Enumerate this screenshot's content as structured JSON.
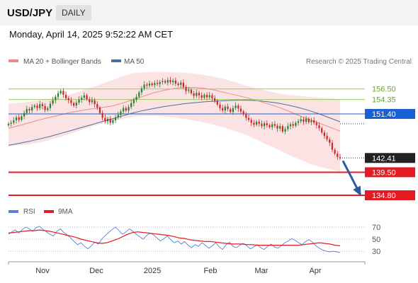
{
  "header": {
    "pair": "USD/JPY",
    "timeframe": "DAILY"
  },
  "datetime": "Monday, April 14, 2025 9:52:22 AM CET",
  "legend": {
    "ma20": "MA 20 + Bollinger Bands",
    "ma50": "MA 50",
    "credit": "Research © 2025 Trading Central",
    "rsi": "RSI",
    "rsi_ma": "9MA"
  },
  "colors": {
    "ma20": "#f08a8a",
    "band": "#fbdada",
    "ma50": "#4a6fa5",
    "up": "#2e7d32",
    "down": "#c62828",
    "resistance": "#9ccc65",
    "pivot": "#1a5fd6",
    "support": "#e31b23",
    "arrow": "#2d5a9e",
    "rsi": "#5b7fd4",
    "rsi_ma": "#e31b23"
  },
  "chart_data": [
    {
      "type": "candlestick",
      "title": "USD/JPY",
      "timeframe": "Daily",
      "x_labels": [
        "Nov",
        "Dec",
        "2025",
        "Feb",
        "Mar",
        "Apr"
      ],
      "ylim": [
        133.5,
        160.5
      ],
      "last_price": 142.41,
      "levels": [
        {
          "value": 156.5,
          "kind": "resistance",
          "label": "156.50"
        },
        {
          "value": 154.35,
          "kind": "resistance",
          "label": "154.35"
        },
        {
          "value": 151.4,
          "kind": "pivot",
          "label": "151.40"
        },
        {
          "value": 142.41,
          "kind": "last",
          "label": "142.41"
        },
        {
          "value": 139.5,
          "kind": "support",
          "label": "139.50"
        },
        {
          "value": 134.8,
          "kind": "support",
          "label": "134.80"
        }
      ],
      "forecast": {
        "from": 142.41,
        "to": 134.8,
        "direction": "down"
      },
      "closes": [
        149.4,
        149.6,
        150.1,
        150.7,
        150.2,
        150.9,
        151.6,
        152.4,
        152.1,
        152.8,
        153.1,
        152.6,
        153.4,
        153.0,
        152.2,
        152.6,
        153.5,
        154.2,
        154.9,
        155.6,
        156.1,
        155.3,
        154.6,
        154.2,
        153.6,
        153.1,
        153.7,
        154.3,
        154.7,
        155.2,
        154.4,
        153.8,
        154.2,
        153.4,
        152.7,
        151.6,
        150.6,
        149.9,
        150.4,
        149.6,
        150.1,
        150.7,
        151.2,
        151.9,
        152.6,
        152.1,
        152.8,
        153.6,
        154.3,
        154.9,
        155.8,
        156.6,
        157.4,
        157.2,
        157.6,
        157.3,
        157.7,
        157.5,
        157.9,
        158.1,
        157.8,
        158.3,
        157.9,
        158.2,
        157.6,
        157.3,
        157.8,
        156.9,
        156.1,
        156.3,
        155.6,
        155.1,
        155.7,
        155.2,
        154.7,
        155.3,
        154.8,
        155.2,
        154.6,
        154.1,
        153.3,
        152.6,
        152.1,
        152.9,
        152.4,
        151.8,
        152.6,
        153.1,
        152.5,
        151.9,
        151.3,
        150.6,
        150.2,
        149.6,
        149.2,
        149.8,
        149.4,
        148.9,
        149.5,
        149.1,
        148.7,
        149.3,
        149.0,
        148.4,
        148.9,
        147.8,
        148.3,
        148.9,
        149.3,
        149.0,
        149.6,
        149.9,
        150.3,
        149.8,
        150.4,
        149.7,
        150.1,
        149.6,
        149.1,
        148.5,
        147.6,
        146.9,
        146.2,
        145.5,
        144.1,
        143.3,
        142.6,
        142.41
      ],
      "bollinger": {
        "upper": [
          153.5,
          153.7,
          153.9,
          154.2,
          154.5,
          154.9,
          155.4,
          156.1,
          156.8,
          157.5,
          158.3,
          159.1,
          159.7,
          159.9,
          160.0,
          160.0,
          159.9,
          159.8,
          159.6,
          159.3,
          158.9,
          158.4,
          157.8,
          157.1,
          156.6,
          156.1,
          155.6,
          155.3,
          155.1,
          154.9,
          154.7,
          154.6,
          154.4
        ],
        "lower": [
          144.8,
          145.0,
          145.2,
          145.6,
          146.1,
          146.7,
          147.4,
          148.1,
          148.8,
          149.4,
          149.9,
          150.4,
          150.8,
          151.0,
          151.0,
          150.9,
          150.7,
          150.4,
          150.0,
          149.6,
          149.1,
          148.5,
          147.8,
          147.0,
          146.1,
          145.1,
          144.1,
          143.1,
          142.2,
          141.3,
          140.6,
          140.1,
          139.7
        ]
      },
      "ma20": [
        148.5,
        149.0,
        149.6,
        150.2,
        150.7,
        151.2,
        151.7,
        152.1,
        152.4,
        152.7,
        153.0,
        153.6,
        154.3,
        155.0,
        155.7,
        156.2,
        156.6,
        156.8,
        156.8,
        156.6,
        156.2,
        155.7,
        155.2,
        154.7,
        154.1,
        153.5,
        152.8,
        152.0,
        151.1,
        150.3,
        149.5,
        148.7,
        147.9
      ],
      "ma50": [
        145.0,
        145.4,
        145.8,
        146.3,
        146.8,
        147.4,
        148.0,
        148.6,
        149.2,
        149.8,
        150.4,
        151.0,
        151.6,
        152.1,
        152.5,
        152.9,
        153.2,
        153.5,
        153.7,
        153.9,
        154.0,
        154.1,
        154.2,
        154.2,
        154.1,
        153.9,
        153.6,
        153.2,
        152.7,
        152.1,
        151.4,
        150.6,
        149.8
      ]
    },
    {
      "type": "line",
      "title": "RSI",
      "ylim": [
        22,
        78
      ],
      "ticks": [
        70,
        50,
        30
      ],
      "series": [
        {
          "name": "RSI",
          "values": [
            58,
            62,
            65,
            60,
            66,
            70,
            67,
            63,
            69,
            71,
            66,
            62,
            58,
            55,
            63,
            67,
            61,
            57,
            52,
            46,
            41,
            44,
            38,
            34,
            39,
            45,
            42,
            50,
            56,
            61,
            66,
            70,
            64,
            58,
            62,
            67,
            63,
            58,
            54,
            50,
            56,
            60,
            57,
            52,
            47,
            51,
            55,
            49,
            44,
            47,
            42,
            46,
            40,
            36,
            41,
            38,
            44,
            40,
            35,
            39,
            44,
            37,
            33,
            41,
            45,
            38,
            36,
            40,
            43,
            39,
            34,
            37,
            41,
            36,
            33,
            38,
            42,
            37,
            35,
            39,
            44,
            47,
            51,
            48,
            44,
            41,
            46,
            49,
            45,
            39,
            35,
            32,
            30,
            29,
            30,
            29,
            28
          ]
        },
        {
          "name": "9MA",
          "values": [
            60,
            61,
            62,
            63,
            64,
            64,
            65,
            64,
            63,
            61,
            59,
            57,
            55,
            53,
            50,
            48,
            46,
            44,
            43,
            44,
            47,
            50,
            54,
            58,
            61,
            62,
            61,
            60,
            59,
            58,
            57,
            56,
            54,
            52,
            51,
            49,
            48,
            47,
            46,
            46,
            45,
            44,
            43,
            42,
            42,
            42,
            41,
            41,
            40,
            40,
            40,
            40,
            40,
            40,
            40,
            40,
            40,
            41,
            42,
            43,
            44,
            43,
            42,
            40,
            39
          ]
        }
      ]
    }
  ]
}
